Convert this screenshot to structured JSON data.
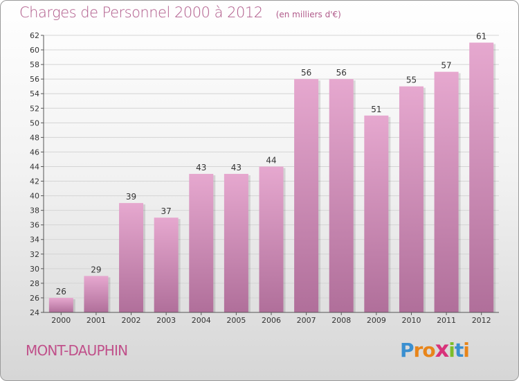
{
  "page": {
    "title": "Charges de Personnel 2000 à 2012",
    "subtitle": "(en milliers d'€)",
    "commune": "MONT-DAUPHIN",
    "logo": {
      "letters": [
        {
          "char": "P",
          "color": "#3a8fd0"
        },
        {
          "char": "r",
          "color": "#e8851a"
        },
        {
          "char": "o",
          "color": "#e8851a"
        },
        {
          "char": "x",
          "color": "#d8327a"
        },
        {
          "char": "i",
          "color": "#7cbd2a"
        },
        {
          "char": "t",
          "color": "#3a8fd0"
        },
        {
          "char": "i",
          "color": "#e8851a"
        }
      ]
    }
  },
  "colors": {
    "bar_top": "#e6a8cf",
    "bar_bottom": "#b06f9a",
    "accent": "#b05a8a",
    "grid": "#d4d4d4"
  },
  "chart_data": {
    "type": "bar",
    "title": "Charges de Personnel 2000 à 2012",
    "subtitle": "(en milliers d'€)",
    "categories": [
      "2000",
      "2001",
      "2002",
      "2003",
      "2004",
      "2005",
      "2006",
      "2007",
      "2008",
      "2009",
      "2010",
      "2011",
      "2012"
    ],
    "values": [
      26,
      29,
      39,
      37,
      43,
      43,
      44,
      56,
      56,
      51,
      55,
      57,
      61
    ],
    "ylim": [
      24,
      62
    ],
    "yticks": [
      24,
      26,
      28,
      30,
      32,
      34,
      36,
      38,
      40,
      42,
      44,
      46,
      48,
      50,
      52,
      54,
      56,
      58,
      60,
      62
    ],
    "grid": true,
    "xlabel": "",
    "ylabel": ""
  }
}
